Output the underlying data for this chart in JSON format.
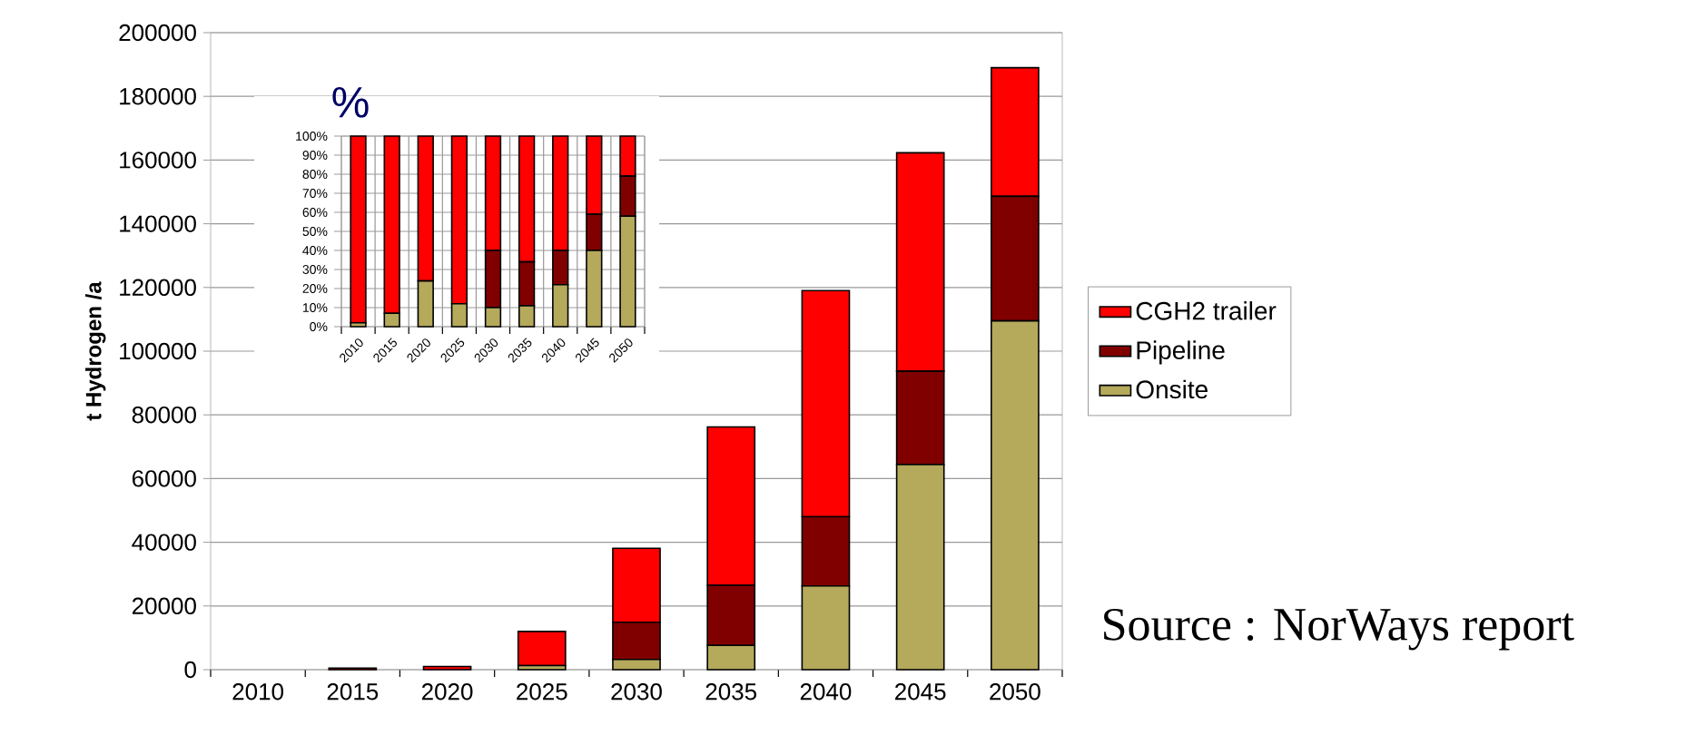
{
  "chart_data": [
    {
      "type": "bar",
      "stacked": true,
      "ylabel": "t Hydrogen /a",
      "categories": [
        "2010",
        "2015",
        "2020",
        "2025",
        "2030",
        "2035",
        "2040",
        "2045",
        "2050"
      ],
      "series": [
        {
          "name": "Onsite",
          "color": "#b5a95c",
          "values": [
            0,
            0,
            null,
            1300,
            3200,
            7600,
            26300,
            64400,
            109500
          ]
        },
        {
          "name": "Pipeline",
          "color": "#800000",
          "values": [
            0,
            0,
            0,
            0,
            11700,
            18900,
            21700,
            29300,
            39100
          ]
        },
        {
          "name": "CGH2 trailer",
          "color": "#ff0000",
          "values": [
            null,
            500,
            1000,
            10700,
            23200,
            49700,
            71000,
            68600,
            40400
          ]
        }
      ],
      "ylim": [
        0,
        200000
      ],
      "yticks": [
        0,
        20000,
        40000,
        60000,
        80000,
        100000,
        120000,
        140000,
        160000,
        180000,
        200000
      ],
      "grid": "y",
      "legend": "right",
      "annotations": [
        "Source : NorWays report"
      ]
    },
    {
      "type": "bar",
      "stacked": true,
      "title": "%",
      "categories": [
        "2010",
        "2015",
        "2020",
        "2025",
        "2030",
        "2035",
        "2040",
        "2045",
        "2050"
      ],
      "series": [
        {
          "color": "#b5a95c",
          "values": [
            2,
            7,
            24,
            12,
            10,
            11,
            22,
            40,
            58
          ]
        },
        {
          "color": "#800000",
          "values": [
            0,
            0,
            0,
            0,
            30,
            23,
            18,
            19,
            21
          ]
        },
        {
          "color": "#ff0000",
          "values": [
            98,
            93,
            76,
            88,
            60,
            66,
            60,
            41,
            21
          ]
        }
      ],
      "ylim": [
        0,
        100
      ],
      "yticks": [
        {
          "value": 0,
          "label": "0%"
        },
        {
          "value": 10,
          "label": "10%"
        },
        {
          "value": 20,
          "label": "20%"
        },
        {
          "value": 30,
          "label": "30%"
        },
        {
          "value": 40,
          "label": "40%"
        },
        {
          "value": 50,
          "label": "50%"
        },
        {
          "value": 60,
          "label": "60%"
        },
        {
          "value": 70,
          "label": "70%"
        },
        {
          "value": 80,
          "label": "80%"
        },
        {
          "value": 90,
          "label": "90%"
        },
        {
          "value": 100,
          "label": "100%"
        }
      ],
      "grid": true
    }
  ]
}
